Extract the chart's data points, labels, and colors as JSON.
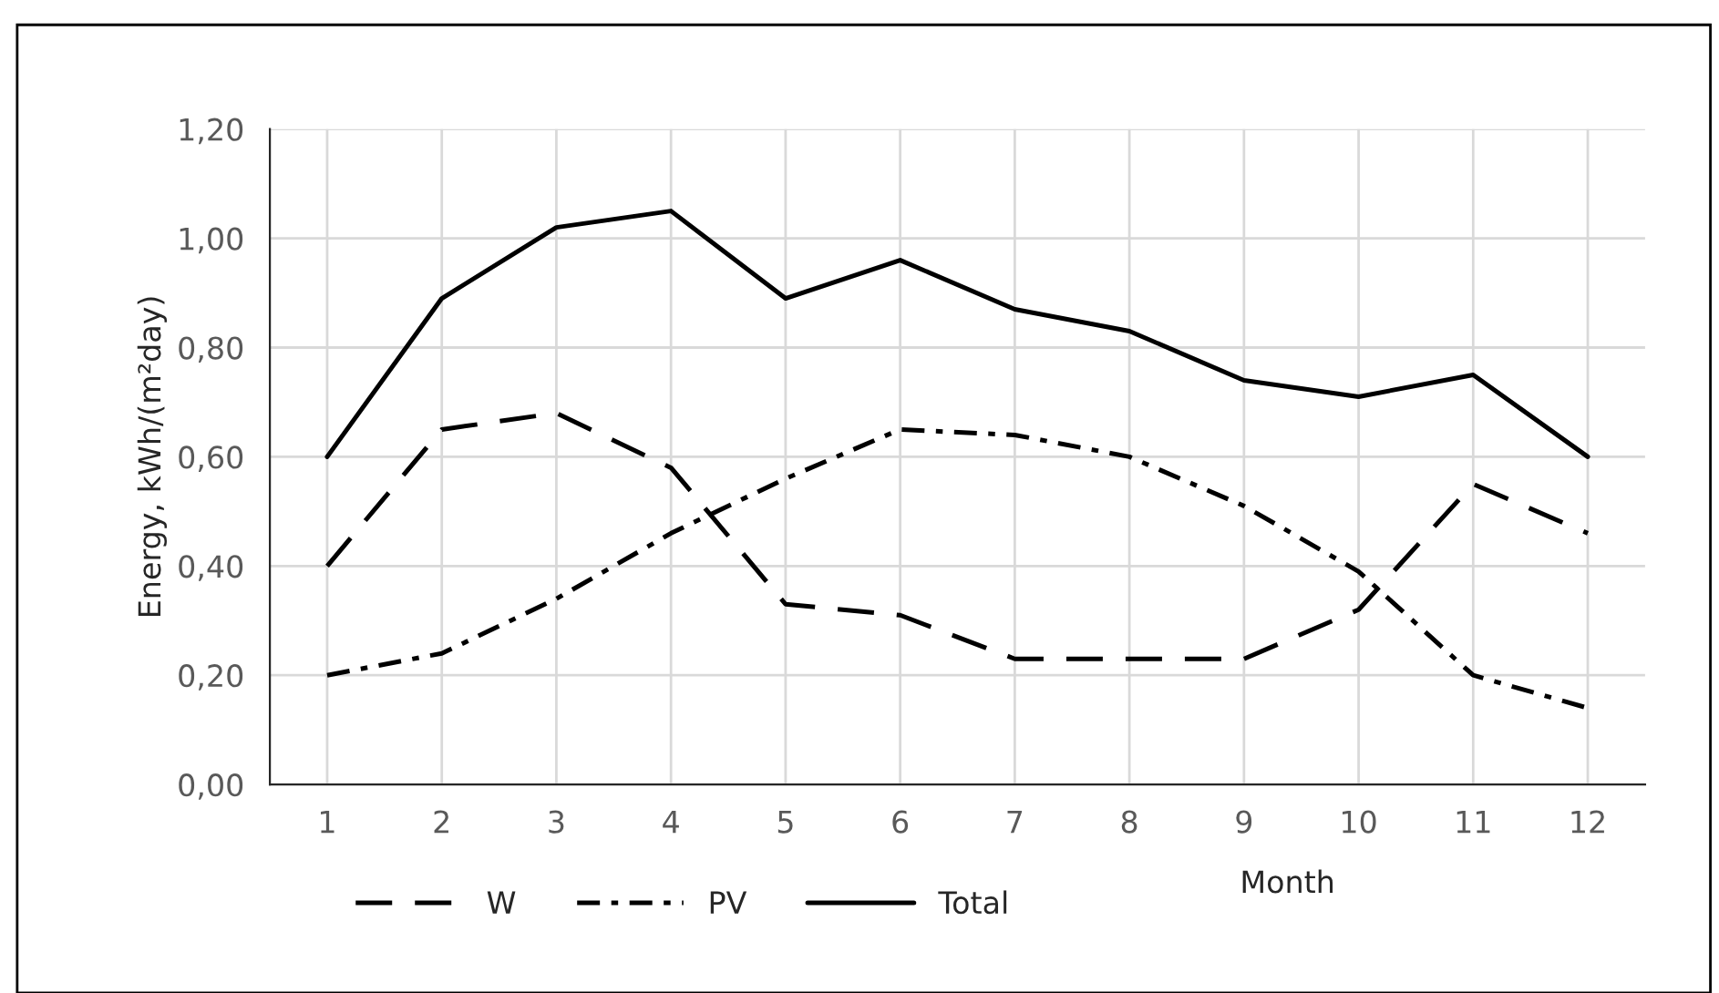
{
  "chart_data": {
    "type": "line",
    "xlabel": "Month",
    "ylabel": "Energy, kWh/(m²day)",
    "categories": [
      "1",
      "2",
      "3",
      "4",
      "5",
      "6",
      "7",
      "8",
      "9",
      "10",
      "11",
      "12"
    ],
    "series": [
      {
        "name": "W",
        "color": "#000000",
        "line_style": "dashed",
        "values": [
          0.4,
          0.65,
          0.68,
          0.58,
          0.33,
          0.31,
          0.23,
          0.23,
          0.23,
          0.32,
          0.55,
          0.46
        ]
      },
      {
        "name": "PV",
        "color": "#000000",
        "line_style": "dashdot",
        "values": [
          0.2,
          0.24,
          0.34,
          0.46,
          0.56,
          0.65,
          0.64,
          0.6,
          0.51,
          0.39,
          0.2,
          0.14
        ]
      },
      {
        "name": "Total",
        "color": "#000000",
        "line_style": "solid",
        "values": [
          0.6,
          0.89,
          1.02,
          1.05,
          0.89,
          0.96,
          0.87,
          0.83,
          0.74,
          0.71,
          0.75,
          0.6
        ]
      }
    ],
    "ylim": [
      0,
      1.2
    ],
    "yticks": [
      {
        "value": 0,
        "label": "0,00"
      },
      {
        "value": 0.2,
        "label": "0,20"
      },
      {
        "value": 0.4,
        "label": "0,40"
      },
      {
        "value": 0.6,
        "label": "0,60"
      },
      {
        "value": 0.8,
        "label": "0,80"
      },
      {
        "value": 1.0,
        "label": "1,00"
      },
      {
        "value": 1.2,
        "label": "1,20"
      }
    ],
    "grid": true,
    "legend": "bottom",
    "marker": "none"
  }
}
